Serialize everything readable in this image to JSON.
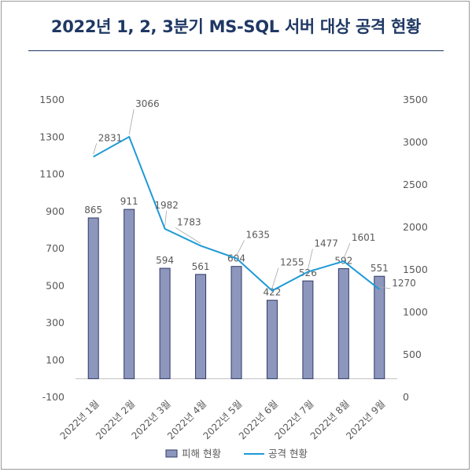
{
  "title": "2022년 1, 2, 3분기 MS-SQL 서버 대상 공격 현황",
  "colors": {
    "bar_fill": "#8d96bd",
    "bar_stroke": "#2f3a66",
    "line": "#1f9ad6",
    "title": "#1f3864"
  },
  "chart_data": {
    "type": "bar",
    "categories": [
      "2022년 1월",
      "2022년 2월",
      "2022년 3월",
      "2022년 4월",
      "2022년 5월",
      "2022년 6월",
      "2022년 7월",
      "2022년 8월",
      "2022년 9월"
    ],
    "series": [
      {
        "name": "피해 현황",
        "type": "bar",
        "axis": "left",
        "values": [
          865,
          911,
          594,
          561,
          604,
          422,
          526,
          592,
          551
        ]
      },
      {
        "name": "공격 현황",
        "type": "line",
        "axis": "right",
        "values": [
          2831,
          3066,
          1982,
          1783,
          1635,
          1255,
          1477,
          1601,
          1270
        ]
      }
    ],
    "y_left": {
      "min": -100,
      "max": 1500,
      "ticks": [
        -100,
        100,
        300,
        500,
        700,
        900,
        1100,
        1300,
        1500
      ]
    },
    "y_right": {
      "min": 0,
      "max": 3500,
      "ticks": [
        0,
        500,
        1000,
        1500,
        2000,
        2500,
        3000,
        3500
      ]
    },
    "grid": false,
    "legend": "bottom"
  }
}
